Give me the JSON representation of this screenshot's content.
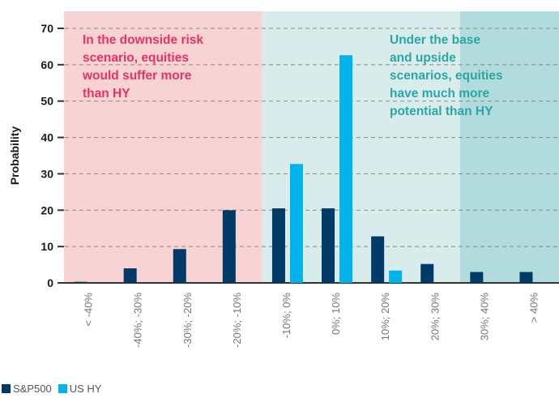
{
  "chart_data": {
    "type": "bar",
    "ylabel": "Probability",
    "ylim": [
      0,
      70
    ],
    "yticks": [
      0,
      10,
      20,
      30,
      40,
      50,
      60,
      70
    ],
    "grid": "dashed horizontal",
    "categories": [
      "< -40%",
      "-40%; -30%",
      "-30%; -20%",
      "-20%; -10%",
      "-10%; 0%",
      "0%; 10%",
      "10%; 20%",
      "20%; 30%",
      "30%; 40%",
      "> 40%"
    ],
    "series": [
      {
        "name": "S&P500",
        "color": "#003a66",
        "values": [
          0.3,
          4,
          9.3,
          20,
          20.5,
          20.5,
          12.8,
          5.2,
          3,
          3
        ]
      },
      {
        "name": "US HY",
        "color": "#00b3ea",
        "values": [
          0,
          0,
          0,
          0,
          32.7,
          62.6,
          3.4,
          0,
          0,
          0
        ]
      }
    ],
    "regions": [
      {
        "from": 0,
        "to": 4,
        "color": "#f8d3d4"
      },
      {
        "from": 4,
        "to": 8,
        "color": "#d9ecec"
      },
      {
        "from": 8,
        "to": 10,
        "color": "#b1dbdc"
      }
    ],
    "annotations": [
      {
        "lines": [
          "In the downside risk",
          "scenario, equities",
          "would suffer more",
          "than HY"
        ],
        "color": "#e8335e"
      },
      {
        "lines": [
          "Under the base",
          "and upside",
          "scenarios, equities",
          "have much more",
          "potential than HY"
        ],
        "color": "#2aa6a5"
      }
    ],
    "legend_position": "bottom-left"
  }
}
